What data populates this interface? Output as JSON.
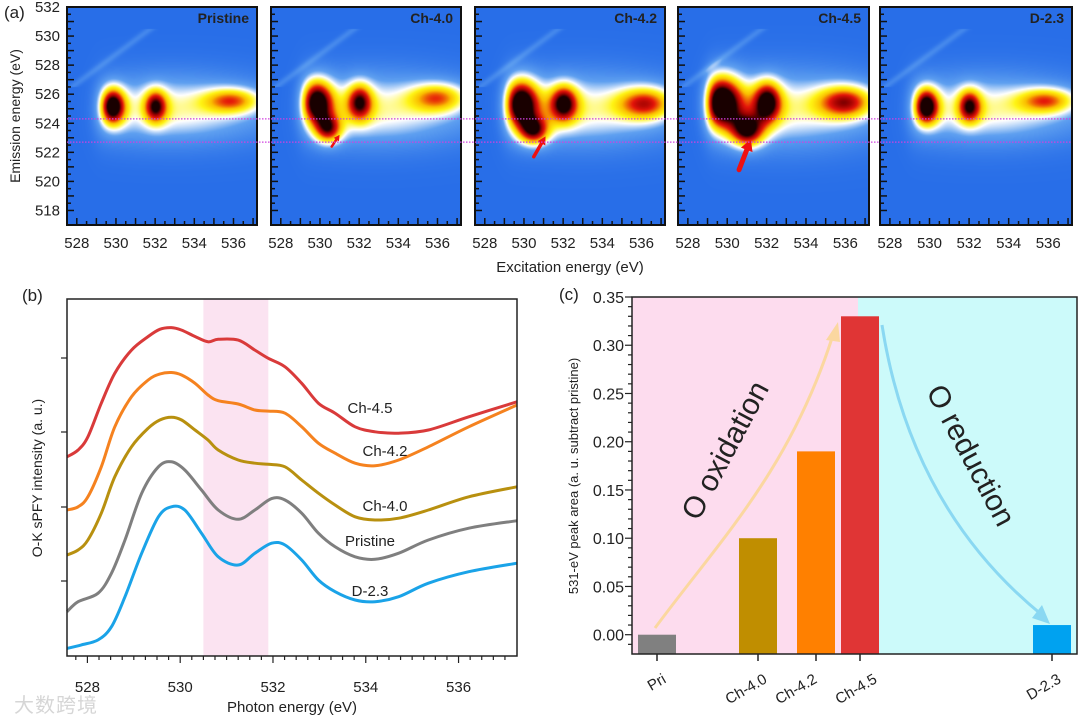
{
  "watermark": "大数跨境",
  "chart_data": [
    {
      "type": "heatmap",
      "panel_label": "(a)",
      "xlabel": "Excitation energy (eV)",
      "ylabel": "Emission energy (eV)",
      "xlim": [
        527.5,
        537.2
      ],
      "ylim": [
        517,
        532
      ],
      "xticks": [
        "528",
        "530",
        "532",
        "534",
        "536"
      ],
      "yticks": [
        "518",
        "520",
        "522",
        "524",
        "526",
        "528",
        "530",
        "532"
      ],
      "reference_lines_emission_ev": [
        524.3,
        522.7
      ],
      "reference_line_color": "#d040e0",
      "title_color": "#f2f200",
      "panels": [
        {
          "title": "Pristine",
          "peaks": [
            [
              529.8,
              525.2,
              1.0,
              0.45,
              0.9
            ],
            [
              532.0,
              525.2,
              0.72,
              0.4,
              0.8
            ],
            [
              535.9,
              525.6,
              0.55,
              1.0,
              0.6
            ],
            [
              532.8,
              525.0,
              0.45,
              3.6,
              1.6
            ]
          ],
          "arrow": null
        },
        {
          "title": "Ch-4.0",
          "peaks": [
            [
              529.8,
              525.5,
              1.0,
              0.6,
              1.1
            ],
            [
              530.4,
              523.6,
              0.7,
              0.5,
              0.7
            ],
            [
              532.0,
              525.5,
              0.72,
              0.45,
              0.9
            ],
            [
              536.0,
              525.8,
              0.55,
              1.0,
              0.7
            ],
            [
              532.8,
              525.0,
              0.45,
              3.6,
              1.7
            ]
          ],
          "arrow": {
            "tail": [
              530.6,
              522.4
            ],
            "head": [
              531.0,
              523.2
            ],
            "size": "small"
          }
        },
        {
          "title": "Ch-4.2",
          "peaks": [
            [
              529.8,
              525.4,
              1.05,
              0.65,
              1.2
            ],
            [
              530.5,
              523.5,
              0.75,
              0.55,
              0.7
            ],
            [
              532.0,
              525.4,
              0.8,
              0.5,
              0.9
            ],
            [
              536.2,
              525.4,
              0.65,
              1.0,
              0.8
            ],
            [
              532.8,
              525.0,
              0.45,
              3.6,
              1.7
            ]
          ],
          "arrow": {
            "tail": [
              530.5,
              521.7
            ],
            "head": [
              531.1,
              523.1
            ],
            "size": "medium"
          }
        },
        {
          "title": "Ch-4.5",
          "peaks": [
            [
              529.6,
              525.5,
              1.15,
              0.8,
              1.3
            ],
            [
              531.0,
              523.5,
              0.85,
              0.6,
              0.8
            ],
            [
              532.0,
              525.5,
              0.85,
              0.5,
              1.0
            ],
            [
              536.0,
              525.5,
              0.7,
              1.0,
              0.8
            ],
            [
              532.8,
              525.0,
              0.45,
              3.6,
              1.8
            ]
          ],
          "arrow": {
            "tail": [
              530.6,
              520.8
            ],
            "head": [
              531.2,
              522.9
            ],
            "size": "large"
          }
        },
        {
          "title": "D-2.3",
          "peaks": [
            [
              529.8,
              525.2,
              1.0,
              0.45,
              0.9
            ],
            [
              532.0,
              525.2,
              0.72,
              0.4,
              0.8
            ],
            [
              535.9,
              525.6,
              0.55,
              1.0,
              0.6
            ],
            [
              532.8,
              525.0,
              0.45,
              3.6,
              1.6
            ]
          ],
          "arrow": null
        }
      ]
    },
    {
      "type": "line",
      "panel_label": "(b)",
      "xlabel": "Photon energy (eV)",
      "ylabel": "O-K sPFY intensity (a. u.)",
      "xlim": [
        527.56,
        537.26
      ],
      "ylim": [
        0,
        10
      ],
      "xticks": [
        "528",
        "530",
        "532",
        "534",
        "536"
      ],
      "highlight_band_ev": [
        530.5,
        531.9
      ],
      "highlight_color": "#fbe3f1",
      "series": [
        {
          "name": "Ch-4.5",
          "color": "#d93a3a",
          "x": [
            527.56,
            527.8,
            528.01,
            528.3,
            528.59,
            528.95,
            529.31,
            529.56,
            529.81,
            530.03,
            530.32,
            530.6,
            530.82,
            531.25,
            531.61,
            531.9,
            532.26,
            532.62,
            532.98,
            533.34,
            533.77,
            534.2,
            534.71,
            535.35,
            536.22,
            537.26
          ],
          "y": [
            5.58,
            5.77,
            6.14,
            7.08,
            7.92,
            8.57,
            8.95,
            9.15,
            9.2,
            9.13,
            8.95,
            8.8,
            8.87,
            8.85,
            8.57,
            8.34,
            8.1,
            7.64,
            7.08,
            6.8,
            6.42,
            6.28,
            6.24,
            6.33,
            6.7,
            7.12
          ]
        },
        {
          "name": "Ch-4.2",
          "color": "#f5821f",
          "x": [
            527.56,
            527.8,
            528.01,
            528.3,
            528.59,
            528.95,
            529.31,
            529.56,
            529.81,
            530.03,
            530.32,
            530.6,
            530.82,
            531.25,
            531.61,
            531.9,
            532.26,
            532.62,
            532.98,
            533.34,
            533.77,
            534.2,
            534.71,
            535.35,
            536.22,
            537.26
          ],
          "y": [
            4.09,
            4.18,
            4.46,
            5.3,
            6.42,
            7.26,
            7.73,
            7.9,
            7.94,
            7.87,
            7.64,
            7.31,
            7.15,
            7.06,
            6.89,
            6.86,
            6.8,
            6.42,
            5.96,
            5.68,
            5.4,
            5.33,
            5.49,
            5.86,
            6.42,
            7.03
          ]
        },
        {
          "name": "Ch-4.0",
          "color": "#b8900f",
          "x": [
            527.56,
            527.8,
            528.01,
            528.3,
            528.59,
            528.95,
            529.31,
            529.56,
            529.81,
            530.03,
            530.32,
            530.6,
            530.82,
            531.25,
            531.61,
            531.9,
            532.26,
            532.62,
            532.98,
            533.34,
            533.77,
            534.2,
            534.71,
            535.35,
            536.22,
            537.26
          ],
          "y": [
            2.83,
            2.97,
            3.25,
            4.0,
            5.02,
            5.86,
            6.38,
            6.61,
            6.69,
            6.61,
            6.33,
            6.05,
            5.77,
            5.49,
            5.4,
            5.37,
            5.3,
            4.93,
            4.56,
            4.23,
            3.9,
            3.81,
            3.86,
            4.09,
            4.46,
            4.74
          ]
        },
        {
          "name": "Pristine",
          "color": "#7f7f7f",
          "x": [
            527.56,
            527.8,
            528.23,
            528.52,
            528.81,
            529.17,
            529.53,
            529.81,
            530.1,
            530.46,
            530.82,
            531.25,
            531.61,
            531.97,
            532.26,
            532.62,
            532.98,
            533.34,
            533.77,
            534.2,
            534.71,
            535.35,
            536.22,
            537.26
          ],
          "y": [
            1.24,
            1.52,
            1.76,
            2.32,
            3.25,
            4.56,
            5.3,
            5.44,
            5.21,
            4.65,
            4.09,
            3.83,
            4.09,
            4.41,
            4.37,
            4.0,
            3.44,
            3.06,
            2.78,
            2.71,
            2.88,
            3.25,
            3.58,
            3.79
          ]
        },
        {
          "name": "D-2.3",
          "color": "#1aa3e8",
          "x": [
            527.56,
            527.87,
            528.23,
            528.52,
            528.81,
            529.17,
            529.53,
            529.81,
            530.1,
            530.46,
            530.82,
            531.25,
            531.61,
            531.97,
            532.26,
            532.62,
            532.98,
            533.34,
            533.77,
            534.2,
            534.71,
            535.35,
            536.22,
            537.26
          ],
          "y": [
            0.21,
            0.31,
            0.45,
            0.82,
            1.66,
            2.88,
            3.9,
            4.18,
            4.09,
            3.44,
            2.78,
            2.55,
            2.88,
            3.16,
            3.11,
            2.69,
            2.13,
            1.8,
            1.57,
            1.52,
            1.66,
            2.04,
            2.36,
            2.6
          ]
        }
      ]
    },
    {
      "type": "bar",
      "panel_label": "(c)",
      "xlabel": "",
      "ylabel": "531-eV peak area (a. u. subtract pristine)",
      "ylim": [
        -0.02,
        0.35
      ],
      "yticks": [
        "0.00",
        "0.05",
        "0.10",
        "0.15",
        "0.20",
        "0.25",
        "0.30",
        "0.35"
      ],
      "categories": [
        "Pri",
        "Ch-4.0",
        "Ch-4.2",
        "Ch-4.5",
        "D-2.3"
      ],
      "values": [
        0.0,
        0.1,
        0.19,
        0.33,
        0.01
      ],
      "colors": [
        "#808080",
        "#c08e00",
        "#ff8000",
        "#e03535",
        "#00a2f0"
      ],
      "background_colors": {
        "charge": "#fddcee",
        "discharge": "#ccfafa"
      },
      "annotations": [
        {
          "text": "O oxidation",
          "color": "#f5b93a",
          "arrow_color": "#fbd7a0"
        },
        {
          "text": "O reduction",
          "color": "#08a4e0",
          "arrow_color": "#8ad8f2"
        }
      ]
    }
  ]
}
